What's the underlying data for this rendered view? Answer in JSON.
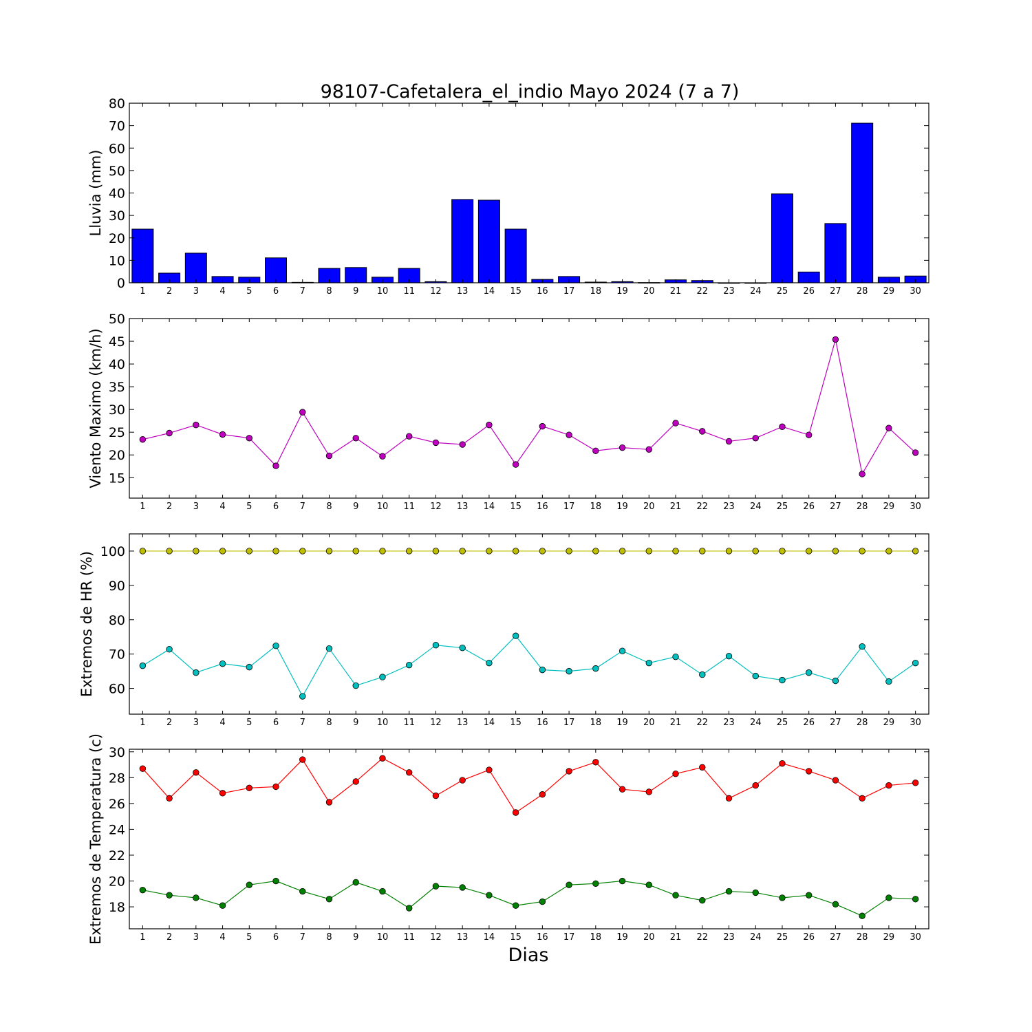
{
  "figure_title": "98107-Cafetalera_el_indio Mayo 2024  (7 a 7)",
  "xlabel": "Dias",
  "chart_data": [
    {
      "type": "bar",
      "title": "98107-Cafetalera_el_indio Mayo 2024  (7 a 7)",
      "ylabel": "Lluvia (mm)",
      "ylim": [
        0,
        80
      ],
      "yticks": [
        0,
        10,
        20,
        30,
        40,
        50,
        60,
        70,
        80
      ],
      "categories": [
        1,
        2,
        3,
        4,
        5,
        6,
        7,
        8,
        9,
        10,
        11,
        12,
        13,
        14,
        15,
        16,
        17,
        18,
        19,
        20,
        21,
        22,
        23,
        24,
        25,
        26,
        27,
        28,
        29,
        30
      ],
      "series": [
        {
          "color": "#0000ff",
          "values": [
            23.9,
            4.3,
            13.2,
            2.8,
            2.5,
            11.1,
            0.2,
            6.4,
            6.8,
            2.5,
            6.4,
            0.5,
            37.1,
            36.8,
            23.9,
            1.5,
            2.8,
            0.3,
            0.5,
            0.1,
            1.3,
            1.0,
            0.0,
            0.0,
            39.6,
            4.8,
            26.4,
            71.1,
            2.5,
            3.0
          ]
        }
      ],
      "grid": false
    },
    {
      "type": "line",
      "ylabel": "Viento Maximo (km/h)",
      "ylim": [
        10.5,
        50
      ],
      "yticks": [
        15,
        20,
        25,
        30,
        35,
        40,
        45,
        50
      ],
      "x": [
        1,
        2,
        3,
        4,
        5,
        6,
        7,
        8,
        9,
        10,
        11,
        12,
        13,
        14,
        15,
        16,
        17,
        18,
        19,
        20,
        21,
        22,
        23,
        24,
        25,
        26,
        27,
        28,
        29,
        30
      ],
      "series": [
        {
          "color": "#bf00bf",
          "values": [
            23.4,
            24.8,
            26.6,
            24.5,
            23.7,
            17.6,
            29.4,
            19.8,
            23.7,
            19.7,
            24.1,
            22.7,
            22.3,
            26.6,
            17.9,
            26.3,
            24.4,
            20.9,
            21.6,
            21.2,
            27.0,
            25.2,
            23.0,
            23.7,
            26.2,
            24.4,
            45.4,
            15.8,
            25.9,
            20.5
          ]
        }
      ],
      "grid": false
    },
    {
      "type": "line",
      "ylabel": "Extremos de HR (%)",
      "ylim": [
        52.5,
        105
      ],
      "yticks": [
        60,
        70,
        80,
        90,
        100
      ],
      "x": [
        1,
        2,
        3,
        4,
        5,
        6,
        7,
        8,
        9,
        10,
        11,
        12,
        13,
        14,
        15,
        16,
        17,
        18,
        19,
        20,
        21,
        22,
        23,
        24,
        25,
        26,
        27,
        28,
        29,
        30
      ],
      "series": [
        {
          "color": "#bfbf00",
          "values": [
            100,
            100,
            100,
            100,
            100,
            100,
            100,
            100,
            100,
            100,
            100,
            100,
            100,
            100,
            100,
            100,
            100,
            100,
            100,
            100,
            100,
            100,
            100,
            100,
            100,
            100,
            100,
            100,
            100,
            100
          ]
        },
        {
          "color": "#00bfbf",
          "values": [
            66.6,
            71.4,
            64.6,
            67.2,
            66.2,
            72.4,
            57.7,
            71.6,
            60.8,
            63.3,
            66.8,
            72.6,
            71.8,
            67.4,
            75.3,
            65.4,
            65.0,
            65.8,
            70.9,
            67.4,
            69.2,
            64.0,
            69.4,
            63.6,
            62.4,
            64.6,
            62.2,
            72.2,
            62.0,
            67.4
          ]
        }
      ],
      "grid": false
    },
    {
      "type": "line",
      "ylabel": "Extremos de Temperatura (c)",
      "ylim": [
        16.3,
        30.2
      ],
      "yticks": [
        18,
        20,
        22,
        24,
        26,
        28,
        30
      ],
      "x": [
        1,
        2,
        3,
        4,
        5,
        6,
        7,
        8,
        9,
        10,
        11,
        12,
        13,
        14,
        15,
        16,
        17,
        18,
        19,
        20,
        21,
        22,
        23,
        24,
        25,
        26,
        27,
        28,
        29,
        30
      ],
      "series": [
        {
          "color": "#ff0000",
          "values": [
            28.7,
            26.4,
            28.4,
            26.8,
            27.2,
            27.3,
            29.4,
            26.1,
            27.7,
            29.5,
            28.4,
            26.6,
            27.8,
            28.6,
            25.3,
            26.7,
            28.5,
            29.2,
            27.1,
            26.9,
            28.3,
            28.8,
            26.4,
            27.4,
            29.1,
            28.5,
            27.8,
            26.4,
            27.4,
            27.6
          ]
        },
        {
          "color": "#008000",
          "values": [
            19.3,
            18.9,
            18.7,
            18.1,
            19.7,
            20.0,
            19.2,
            18.6,
            19.9,
            19.2,
            17.9,
            19.6,
            19.5,
            18.9,
            18.1,
            18.4,
            19.7,
            19.8,
            20.0,
            19.7,
            18.9,
            18.5,
            19.2,
            19.1,
            18.7,
            18.9,
            18.2,
            17.3,
            18.7,
            18.6
          ]
        }
      ],
      "grid": false
    }
  ]
}
